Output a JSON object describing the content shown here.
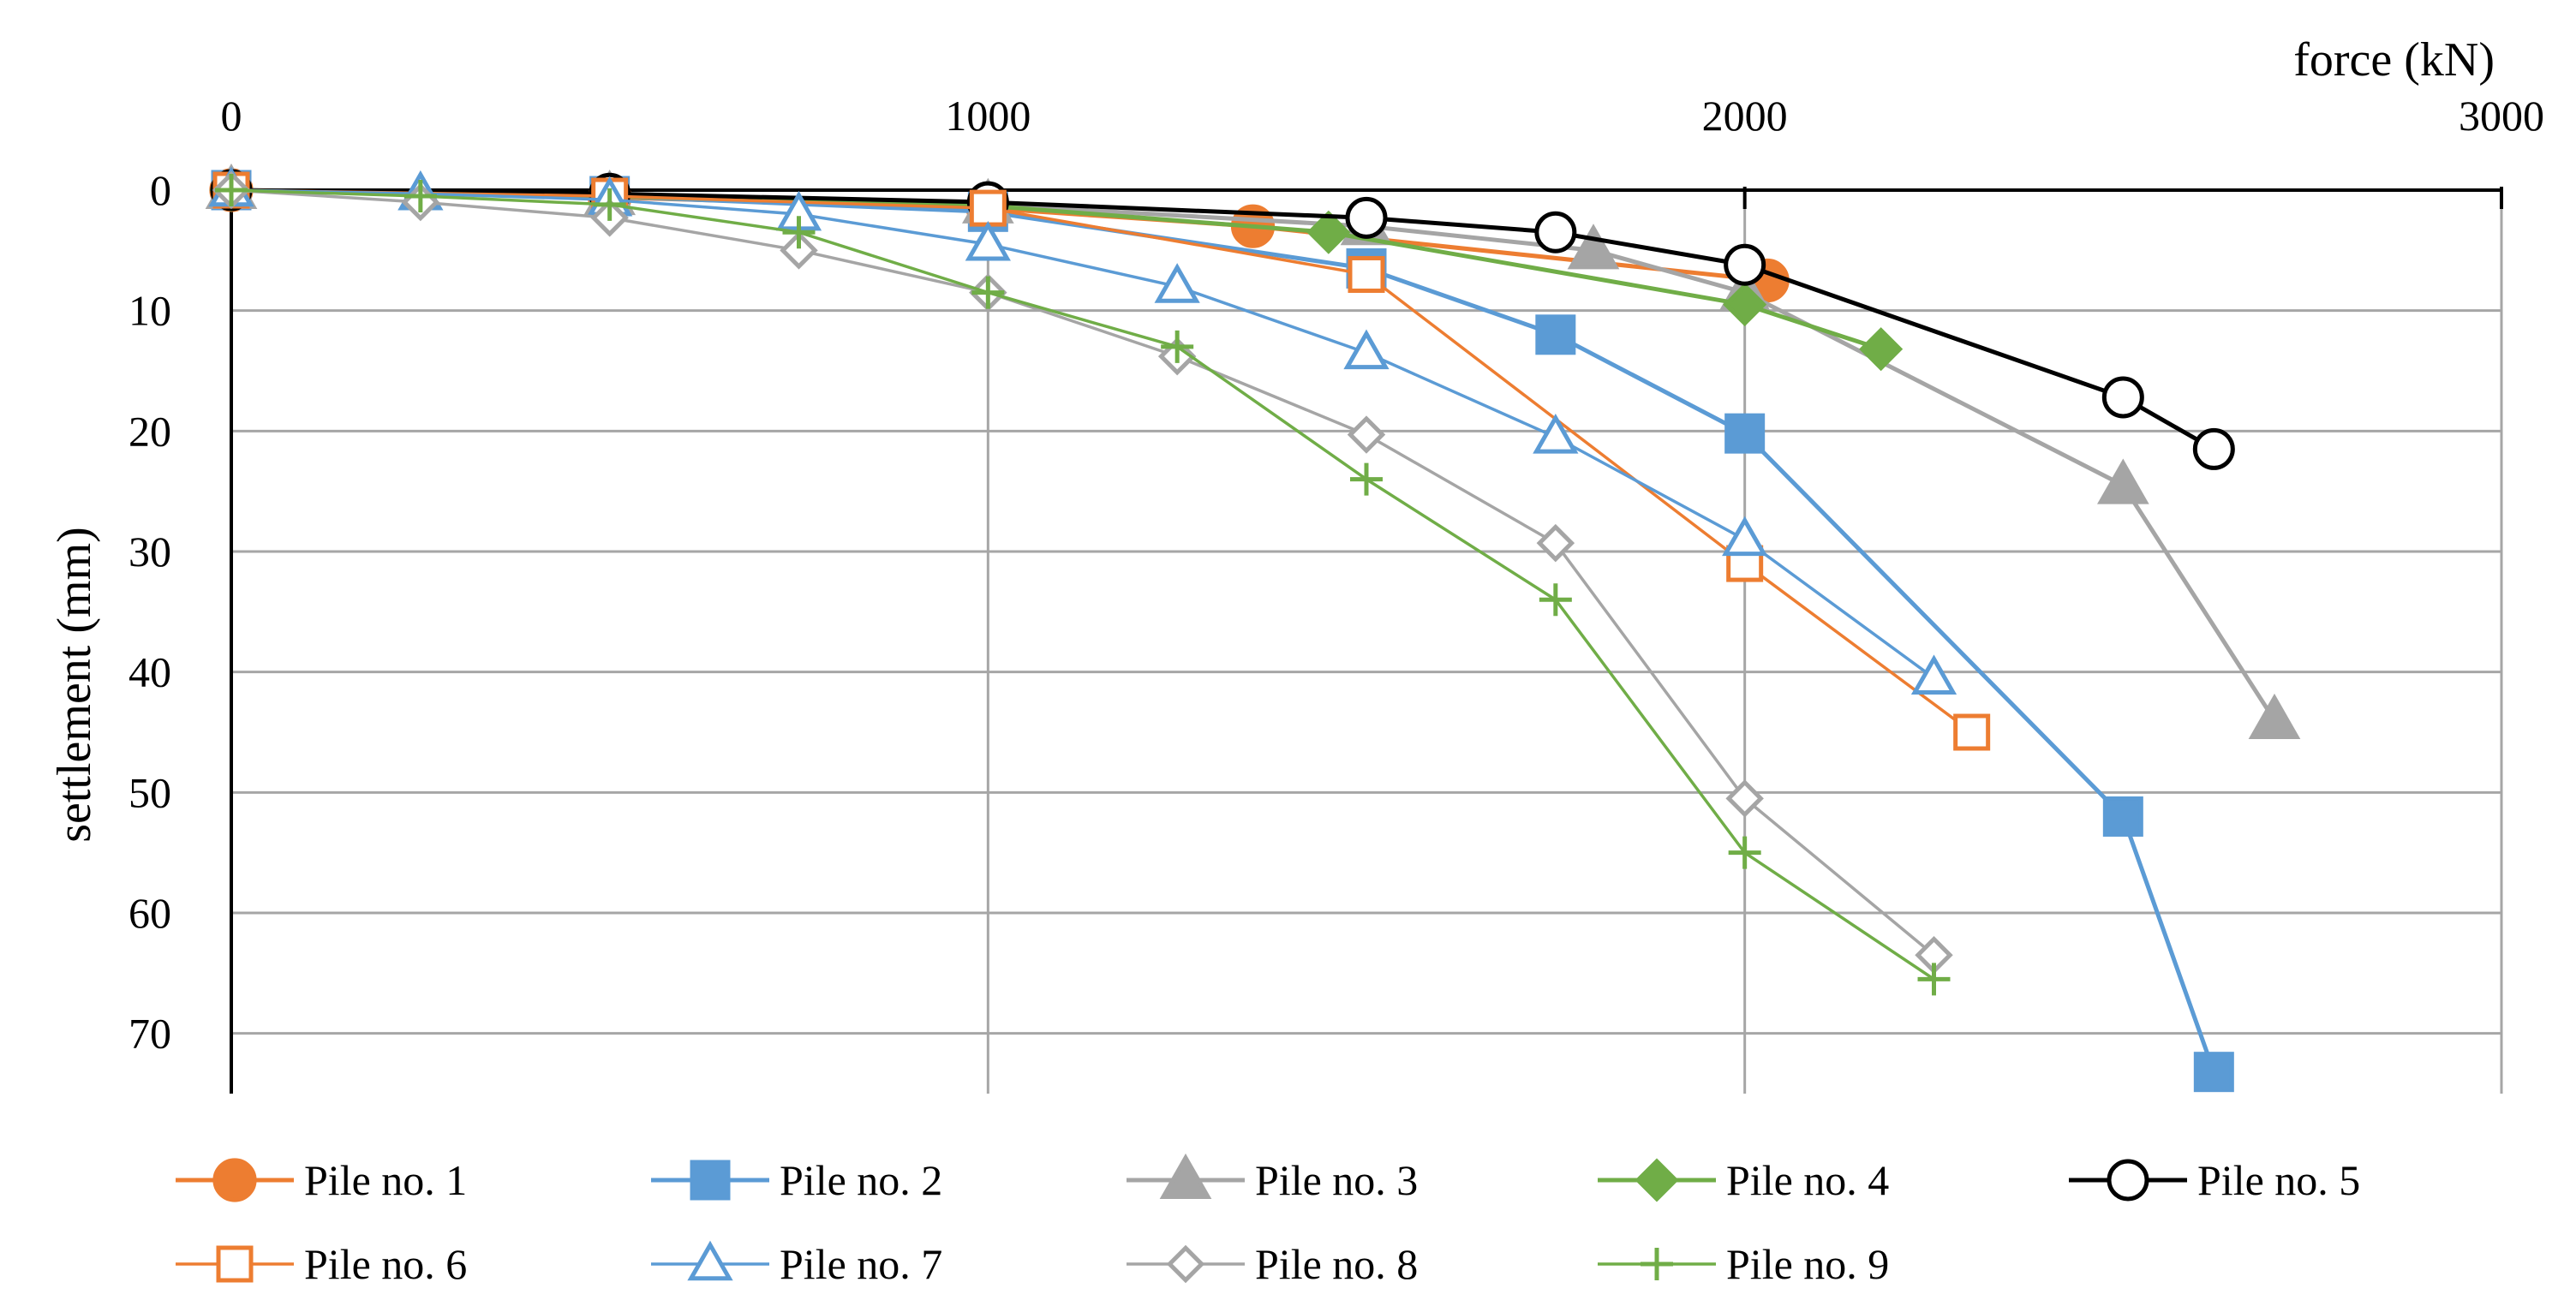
{
  "chart_data": {
    "type": "line",
    "title": "",
    "xlabel": "force (kN)",
    "ylabel": "settlement (mm)",
    "xlim": [
      0,
      3000
    ],
    "ylim": [
      0,
      75
    ],
    "y_inverted": true,
    "x_axis_position": "top",
    "x_ticks": [
      0,
      1000,
      2000,
      3000
    ],
    "y_ticks": [
      0,
      10,
      20,
      30,
      40,
      50,
      60,
      70
    ],
    "grid": true,
    "legend_position": "bottom",
    "series": [
      {
        "name": "Pile no. 1",
        "color": "#ED7D31",
        "marker": "circle",
        "filled": true,
        "line_width": 5,
        "x": [
          0,
          500,
          1000,
          1350,
          2030
        ],
        "y": [
          0,
          0.6,
          1.5,
          3.0,
          7.5
        ]
      },
      {
        "name": "Pile no. 2",
        "color": "#5B9BD5",
        "marker": "square",
        "filled": true,
        "line_width": 5,
        "x": [
          0,
          500,
          1000,
          1500,
          1750,
          2000,
          2500,
          2620
        ],
        "y": [
          0,
          0.5,
          1.8,
          6.5,
          12.0,
          20.2,
          52.0,
          73.2
        ]
      },
      {
        "name": "Pile no. 3",
        "color": "#A5A5A5",
        "marker": "triangle",
        "filled": true,
        "line_width": 5,
        "x": [
          0,
          500,
          1000,
          1500,
          1800,
          2000,
          2500,
          2700
        ],
        "y": [
          0,
          0.5,
          1.2,
          3.0,
          5.0,
          8.5,
          24.5,
          44.0
        ]
      },
      {
        "name": "Pile no. 4",
        "color": "#70AD47",
        "marker": "diamond",
        "filled": true,
        "line_width": 5,
        "x": [
          0,
          500,
          1000,
          1450,
          2000,
          2180
        ],
        "y": [
          0,
          0.5,
          1.3,
          3.5,
          9.5,
          13.2
        ]
      },
      {
        "name": "Pile no. 5",
        "color": "#000000",
        "marker": "circle",
        "filled": false,
        "line_width": 5,
        "x": [
          0,
          500,
          1000,
          1500,
          1750,
          2000,
          2500,
          2620
        ],
        "y": [
          0,
          0.3,
          1.0,
          2.3,
          3.5,
          6.2,
          17.2,
          21.5
        ]
      },
      {
        "name": "Pile no. 6",
        "color": "#ED7D31",
        "marker": "square",
        "filled": false,
        "line_width": 3.5,
        "x": [
          0,
          500,
          1000,
          1500,
          2000,
          2300
        ],
        "y": [
          0,
          0.5,
          1.5,
          7.0,
          31.0,
          45.0
        ]
      },
      {
        "name": "Pile no. 7",
        "color": "#5B9BD5",
        "marker": "triangle",
        "filled": false,
        "line_width": 3.5,
        "x": [
          0,
          250,
          500,
          750,
          1000,
          1250,
          1500,
          1750,
          2000,
          2250
        ],
        "y": [
          0,
          0.3,
          0.8,
          2.0,
          4.5,
          8.0,
          13.5,
          20.5,
          29.0,
          40.5
        ]
      },
      {
        "name": "Pile no. 8",
        "color": "#A5A5A5",
        "marker": "diamond",
        "filled": false,
        "line_width": 3.5,
        "x": [
          0,
          250,
          500,
          750,
          1000,
          1250,
          1500,
          1750,
          2000,
          2250
        ],
        "y": [
          0,
          1.0,
          2.3,
          5.0,
          8.5,
          13.8,
          20.3,
          29.3,
          50.5,
          63.5
        ]
      },
      {
        "name": "Pile no. 9",
        "color": "#70AD47",
        "marker": "plus",
        "filled": false,
        "line_width": 3.5,
        "x": [
          0,
          250,
          500,
          750,
          1000,
          1250,
          1500,
          1750,
          2000,
          2250
        ],
        "y": [
          0,
          0.5,
          1.2,
          3.5,
          8.5,
          13.0,
          24.0,
          34.0,
          55.0,
          65.5
        ]
      }
    ]
  }
}
